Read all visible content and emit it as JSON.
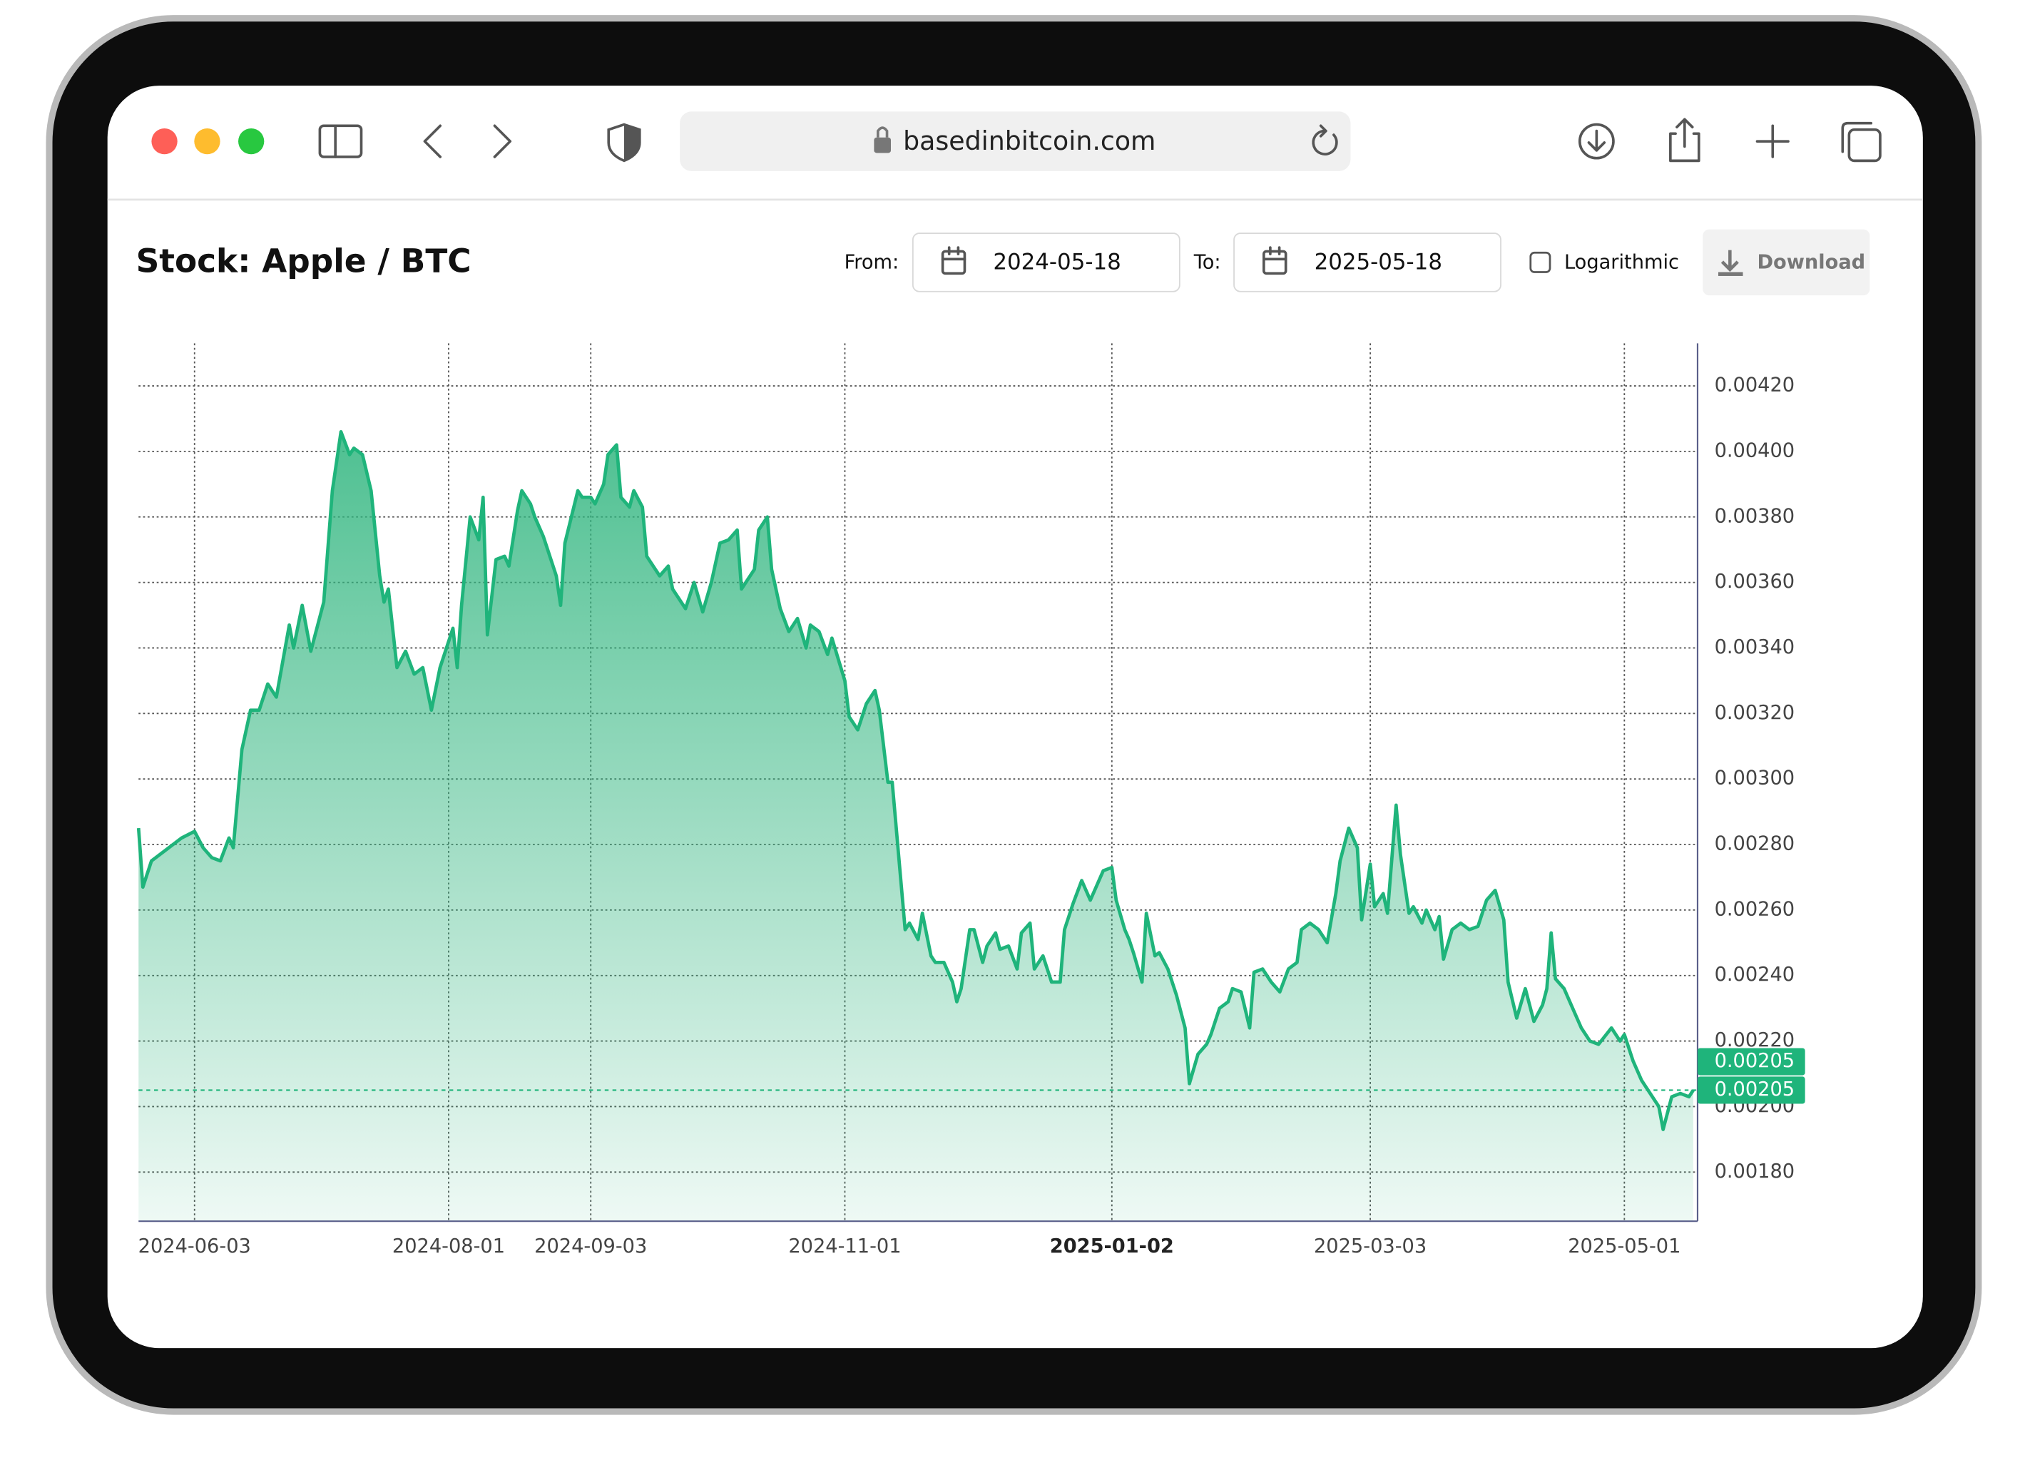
{
  "browser": {
    "url": "basedinbitcoin.com"
  },
  "controls": {
    "from_label": "From:",
    "from_date": "2024-05-18",
    "to_label": "To:",
    "to_date": "2025-05-18",
    "log_label": "Logarithmic",
    "download_label": "Download"
  },
  "chart_data": {
    "type": "area",
    "title": "Stock: Apple / BTC",
    "color": "#1fb47b",
    "log_scale": false,
    "grid": true,
    "x": [
      "2024-05-21",
      "2024-05-22",
      "2024-05-24",
      "2024-05-27",
      "2024-05-31",
      "2024-06-03",
      "2024-06-05",
      "2024-06-07",
      "2024-06-09",
      "2024-06-11",
      "2024-06-12",
      "2024-06-14",
      "2024-06-16",
      "2024-06-18",
      "2024-06-20",
      "2024-06-22",
      "2024-06-25",
      "2024-06-26",
      "2024-06-28",
      "2024-06-30",
      "2024-07-03",
      "2024-07-05",
      "2024-07-07",
      "2024-07-09",
      "2024-07-10",
      "2024-07-12",
      "2024-07-14",
      "2024-07-16",
      "2024-07-17",
      "2024-07-18",
      "2024-07-20",
      "2024-07-22",
      "2024-07-24",
      "2024-07-26",
      "2024-07-28",
      "2024-07-30",
      "2024-08-02",
      "2024-08-03",
      "2024-08-04",
      "2024-08-06",
      "2024-08-08",
      "2024-08-09",
      "2024-08-10",
      "2024-08-12",
      "2024-08-14",
      "2024-08-15",
      "2024-08-17",
      "2024-08-18",
      "2024-08-20",
      "2024-08-21",
      "2024-08-23",
      "2024-08-26",
      "2024-08-27",
      "2024-08-28",
      "2024-08-31",
      "2024-09-01",
      "2024-09-03",
      "2024-09-04",
      "2024-09-06",
      "2024-09-07",
      "2024-09-09",
      "2024-09-10",
      "2024-09-12",
      "2024-09-13",
      "2024-09-15",
      "2024-09-16",
      "2024-09-19",
      "2024-09-21",
      "2024-09-22",
      "2024-09-25",
      "2024-09-27",
      "2024-09-29",
      "2024-10-01",
      "2024-10-03",
      "2024-10-05",
      "2024-10-07",
      "2024-10-08",
      "2024-10-11",
      "2024-10-12",
      "2024-10-14",
      "2024-10-15",
      "2024-10-17",
      "2024-10-19",
      "2024-10-21",
      "2024-10-23",
      "2024-10-24",
      "2024-10-26",
      "2024-10-28",
      "2024-10-29",
      "2024-11-01",
      "2024-11-02",
      "2024-11-04",
      "2024-11-06",
      "2024-11-08",
      "2024-11-09",
      "2024-11-11",
      "2024-11-12",
      "2024-11-14",
      "2024-11-15",
      "2024-11-16",
      "2024-11-18",
      "2024-11-19",
      "2024-11-21",
      "2024-11-22",
      "2024-11-24",
      "2024-11-26",
      "2024-11-27",
      "2024-11-28",
      "2024-11-30",
      "2024-12-01",
      "2024-12-03",
      "2024-12-04",
      "2024-12-06",
      "2024-12-07",
      "2024-12-09",
      "2024-12-11",
      "2024-12-12",
      "2024-12-14",
      "2024-12-15",
      "2024-12-17",
      "2024-12-19",
      "2024-12-21",
      "2024-12-22",
      "2024-12-24",
      "2024-12-26",
      "2024-12-28",
      "2024-12-30",
      "2024-12-31",
      "2025-01-02",
      "2025-01-03",
      "2025-01-05",
      "2025-01-06",
      "2025-01-07",
      "2025-01-09",
      "2025-01-10",
      "2025-01-12",
      "2025-01-13",
      "2025-01-15",
      "2025-01-17",
      "2025-01-19",
      "2025-01-20",
      "2025-01-22",
      "2025-01-24",
      "2025-01-25",
      "2025-01-27",
      "2025-01-29",
      "2025-01-30",
      "2025-02-01",
      "2025-02-03",
      "2025-02-04",
      "2025-02-06",
      "2025-02-08",
      "2025-02-10",
      "2025-02-12",
      "2025-02-14",
      "2025-02-15",
      "2025-02-17",
      "2025-02-19",
      "2025-02-21",
      "2025-02-23",
      "2025-02-24",
      "2025-02-26",
      "2025-02-28",
      "2025-03-01",
      "2025-03-03",
      "2025-03-04",
      "2025-03-06",
      "2025-03-07",
      "2025-03-09",
      "2025-03-10",
      "2025-03-12",
      "2025-03-13",
      "2025-03-15",
      "2025-03-16",
      "2025-03-18",
      "2025-03-19",
      "2025-03-20",
      "2025-03-22",
      "2025-03-24",
      "2025-03-26",
      "2025-03-28",
      "2025-03-30",
      "2025-04-01",
      "2025-04-03",
      "2025-04-04",
      "2025-04-06",
      "2025-04-08",
      "2025-04-10",
      "2025-04-12",
      "2025-04-13",
      "2025-04-14",
      "2025-04-15",
      "2025-04-17",
      "2025-04-19",
      "2025-04-21",
      "2025-04-23",
      "2025-04-25",
      "2025-04-28",
      "2025-04-30",
      "2025-05-01",
      "2025-05-03",
      "2025-05-05",
      "2025-05-07",
      "2025-05-09",
      "2025-05-10",
      "2025-05-12",
      "2025-05-14",
      "2025-05-16",
      "2025-05-17"
    ],
    "values": [
      0.00285,
      0.00267,
      0.00275,
      0.00278,
      0.00282,
      0.00284,
      0.00279,
      0.00276,
      0.00275,
      0.00282,
      0.00279,
      0.00309,
      0.00321,
      0.00321,
      0.00329,
      0.00325,
      0.00347,
      0.0034,
      0.00353,
      0.00339,
      0.00354,
      0.00388,
      0.00406,
      0.00399,
      0.00401,
      0.00399,
      0.00388,
      0.00362,
      0.00354,
      0.00358,
      0.00334,
      0.00339,
      0.00332,
      0.00334,
      0.00321,
      0.00334,
      0.00346,
      0.00334,
      0.00353,
      0.0038,
      0.00373,
      0.00386,
      0.00344,
      0.00367,
      0.00368,
      0.00365,
      0.00382,
      0.00388,
      0.00384,
      0.0038,
      0.00374,
      0.00362,
      0.00353,
      0.00372,
      0.00388,
      0.00386,
      0.00386,
      0.00384,
      0.0039,
      0.00399,
      0.00402,
      0.00386,
      0.00383,
      0.00388,
      0.00383,
      0.00368,
      0.00362,
      0.00365,
      0.00358,
      0.00352,
      0.0036,
      0.00351,
      0.0036,
      0.00372,
      0.00373,
      0.00376,
      0.00358,
      0.00364,
      0.00376,
      0.0038,
      0.00364,
      0.00352,
      0.00345,
      0.00349,
      0.0034,
      0.00347,
      0.00345,
      0.00338,
      0.00343,
      0.0033,
      0.00319,
      0.00315,
      0.00323,
      0.00327,
      0.00321,
      0.00299,
      0.00299,
      0.00269,
      0.00254,
      0.00256,
      0.00251,
      0.00259,
      0.00246,
      0.00244,
      0.00244,
      0.00238,
      0.00232,
      0.00236,
      0.00254,
      0.00254,
      0.00244,
      0.00249,
      0.00253,
      0.00248,
      0.00249,
      0.00242,
      0.00253,
      0.00256,
      0.00242,
      0.00246,
      0.00238,
      0.00238,
      0.00254,
      0.00262,
      0.00269,
      0.00263,
      0.00269,
      0.00272,
      0.00273,
      0.00263,
      0.00254,
      0.00251,
      0.00247,
      0.00238,
      0.00259,
      0.00246,
      0.00247,
      0.00242,
      0.00234,
      0.00224,
      0.00207,
      0.00216,
      0.00219,
      0.00222,
      0.0023,
      0.00232,
      0.00236,
      0.00235,
      0.00224,
      0.00241,
      0.00242,
      0.00238,
      0.00235,
      0.00242,
      0.00244,
      0.00254,
      0.00256,
      0.00254,
      0.0025,
      0.00265,
      0.00275,
      0.00285,
      0.00279,
      0.00257,
      0.00274,
      0.00261,
      0.00265,
      0.00259,
      0.00292,
      0.00277,
      0.00259,
      0.00261,
      0.00256,
      0.0026,
      0.00254,
      0.00258,
      0.00245,
      0.00254,
      0.00256,
      0.00254,
      0.00255,
      0.00263,
      0.00266,
      0.00257,
      0.00238,
      0.00227,
      0.00236,
      0.00226,
      0.00231,
      0.00236,
      0.00253,
      0.00239,
      0.00236,
      0.0023,
      0.00224,
      0.0022,
      0.00219,
      0.00224,
      0.0022,
      0.00222,
      0.00214,
      0.00208,
      0.00204,
      0.002,
      0.00193,
      0.00203,
      0.00204,
      0.00203,
      0.00205
    ],
    "xlim": [
      "2024-05-21",
      "2025-05-18"
    ],
    "xticks": [
      "2024-06-03",
      "2024-08-01",
      "2024-09-03",
      "2024-11-01",
      "2025-01-02",
      "2025-03-03",
      "2025-05-01"
    ],
    "ylim": [
      0.00165,
      0.00433
    ],
    "yticks": [
      {
        "value": 0.0018,
        "label": "0.00180"
      },
      {
        "value": 0.002,
        "label": "0.00200"
      },
      {
        "value": 0.0022,
        "label": "0.00220"
      },
      {
        "value": 0.0024,
        "label": "0.00240"
      },
      {
        "value": 0.0026,
        "label": "0.00260"
      },
      {
        "value": 0.0028,
        "label": "0.00280"
      },
      {
        "value": 0.003,
        "label": "0.00300"
      },
      {
        "value": 0.0032,
        "label": "0.00320"
      },
      {
        "value": 0.0034,
        "label": "0.00340"
      },
      {
        "value": 0.0036,
        "label": "0.00360"
      },
      {
        "value": 0.0038,
        "label": "0.00380"
      },
      {
        "value": 0.004,
        "label": "0.00400"
      },
      {
        "value": 0.0042,
        "label": "0.00420"
      }
    ],
    "last_value_labels": [
      {
        "value": 0.00205,
        "label": "0.00205"
      },
      {
        "value": 0.00205,
        "label": "0.00205"
      }
    ]
  }
}
